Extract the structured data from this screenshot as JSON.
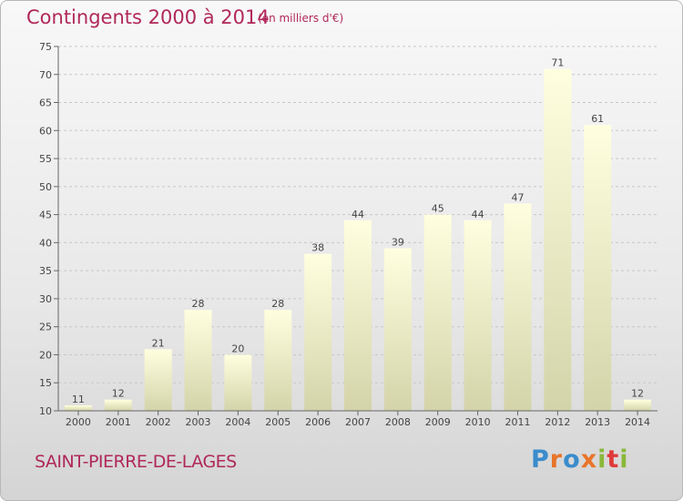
{
  "header": {
    "title": "Contingents 2000 à 2014",
    "subtitle": "(en milliers d'€)"
  },
  "footer": {
    "commune": "SAINT-PIERRE-DE-LAGES",
    "logo_letters": [
      "P",
      "r",
      "o",
      "x",
      "i",
      "t",
      "i"
    ]
  },
  "colors": {
    "title": "#b0285a",
    "logo": [
      "#3a8ccc",
      "#e8742a",
      "#3a8ccc",
      "#e8742a",
      "#8ab83a",
      "#e03a3a",
      "#8ab83a"
    ],
    "bar_top": "#ffffe0",
    "bar_bottom": "#d4d4aa"
  },
  "chart_data": {
    "type": "bar",
    "categories": [
      "2000",
      "2001",
      "2002",
      "2003",
      "2004",
      "2005",
      "2006",
      "2007",
      "2008",
      "2009",
      "2010",
      "2011",
      "2012",
      "2013",
      "2014"
    ],
    "values": [
      11,
      12,
      21,
      28,
      20,
      28,
      38,
      44,
      39,
      45,
      44,
      47,
      71,
      61,
      12
    ],
    "data_labels": [
      "11",
      "12",
      "21",
      "28",
      "20",
      "28",
      "38",
      "44",
      "39",
      "45",
      "44",
      "47",
      "71",
      "61",
      "12"
    ],
    "yticks": [
      "10",
      "15",
      "20",
      "25",
      "30",
      "35",
      "40",
      "45",
      "50",
      "55",
      "60",
      "65",
      "70",
      "75"
    ],
    "ylim": [
      10,
      75
    ],
    "grid": "horizontal dashed",
    "legend": "none"
  }
}
